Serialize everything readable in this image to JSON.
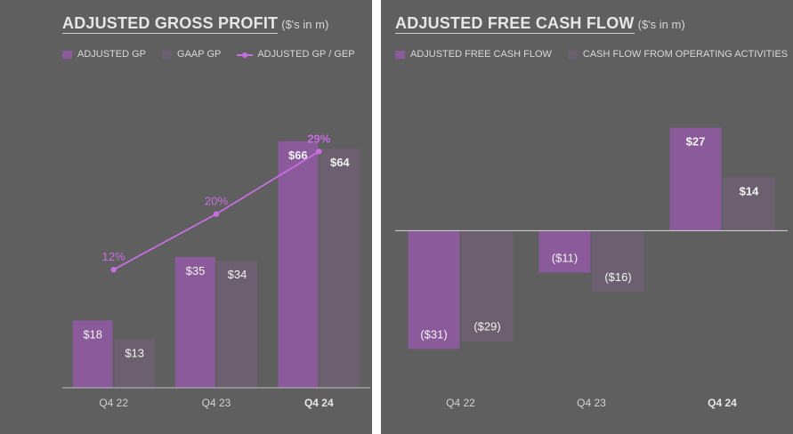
{
  "colors": {
    "background": "#5f5f5f",
    "primary_bar": "#8a5a9a",
    "secondary_bar": "#6c5f70",
    "line": "#c56fe0",
    "axis": "#bfbfbf"
  },
  "chart_data": [
    {
      "type": "bar",
      "title": "ADJUSTED GROSS PROFIT",
      "subtitle": "($'s in m)",
      "categories": [
        "Q4 22",
        "Q4 23",
        "Q4 24"
      ],
      "bold_category": "Q4 24",
      "series": [
        {
          "name": "ADJUSTED GP",
          "values": [
            18,
            35,
            66
          ],
          "labels": [
            "$18",
            "$35",
            "$66"
          ]
        },
        {
          "name": "GAAP GP",
          "values": [
            13,
            34,
            64
          ],
          "labels": [
            "$13",
            "$34",
            "$64"
          ]
        }
      ],
      "line_series": {
        "name": "ADJUSTED GP / GEP",
        "values": [
          12,
          20,
          29
        ],
        "labels": [
          "12%",
          "20%",
          "29%"
        ]
      },
      "ylim": [
        0,
        80
      ],
      "line_ylim": [
        -5,
        38
      ]
    },
    {
      "type": "bar",
      "title": "ADJUSTED FREE CASH FLOW",
      "subtitle": "($'s in m)",
      "categories": [
        "Q4 22",
        "Q4 23",
        "Q4 24"
      ],
      "bold_category": "Q4 24",
      "series": [
        {
          "name": "ADJUSTED FREE CASH FLOW",
          "values": [
            -31,
            -11,
            27
          ],
          "labels": [
            "($31)",
            "($11)",
            "$27"
          ]
        },
        {
          "name": "CASH FLOW FROM OPERATING ACTIVITIES",
          "values": [
            -29,
            -16,
            14
          ],
          "labels": [
            "($29)",
            "($16)",
            "$14"
          ]
        }
      ],
      "ylim": [
        -37,
        36
      ]
    }
  ]
}
